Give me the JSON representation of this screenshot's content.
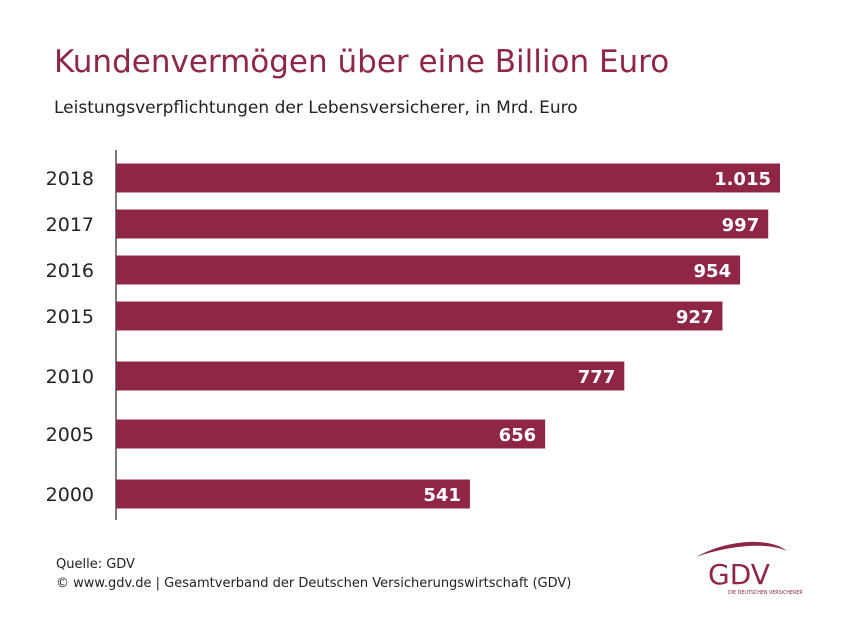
{
  "header": {
    "title": "Kundenvermögen über eine Billion Euro",
    "subtitle": "Leistungsverpflichtungen der Lebensversicherer, in Mrd. Euro"
  },
  "chart_data": {
    "type": "bar",
    "orientation": "horizontal",
    "categories": [
      "2018",
      "2017",
      "2016",
      "2015",
      "2010",
      "2005",
      "2000"
    ],
    "values": [
      1015,
      997,
      954,
      927,
      777,
      656,
      541
    ],
    "value_labels": [
      "1.015",
      "997",
      "954",
      "927",
      "777",
      "656",
      "541"
    ],
    "bar_color": "#8f2646",
    "value_label_color": "#ffffff",
    "xlim": [
      0,
      1015
    ],
    "grid": false,
    "legend": "none"
  },
  "footer": {
    "source": "Quelle: GDV",
    "copyright": "© www.gdv.de | Gesamtverband der Deutschen Versicherungswirtschaft (GDV)"
  },
  "logo": {
    "name": "GDV",
    "tagline": "DIE DEUTSCHEN VERSICHERER",
    "color": "#8f2646"
  }
}
